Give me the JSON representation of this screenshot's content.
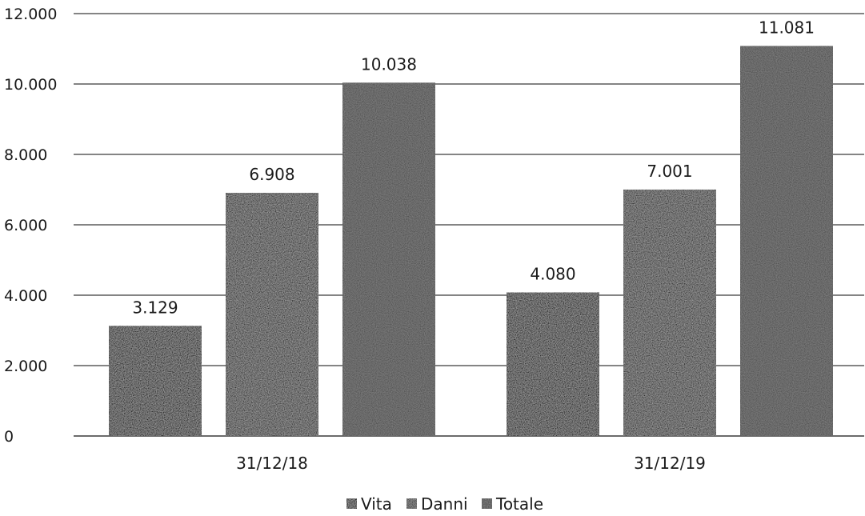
{
  "chart_data": {
    "type": "bar",
    "categories": [
      "31/12/18",
      "31/12/19"
    ],
    "series": [
      {
        "name": "Vita",
        "values": [
          3129,
          4080
        ],
        "labels": [
          "3.129",
          "4.080"
        ],
        "color": "#141414"
      },
      {
        "name": "Danni",
        "values": [
          6908,
          7001
        ],
        "labels": [
          "6.908",
          "7.001"
        ],
        "color": "#2c2c2c"
      },
      {
        "name": "Totale",
        "values": [
          10038,
          11081
        ],
        "labels": [
          "10.038",
          "11.081"
        ],
        "color": "#7a7a7a"
      }
    ],
    "ylim": [
      0,
      12000
    ],
    "yticks": [
      0,
      2000,
      4000,
      6000,
      8000,
      10000,
      12000
    ],
    "ytick_labels": [
      "0",
      "2.000",
      "4.000",
      "6.000",
      "8.000",
      "10.000",
      "12.000"
    ],
    "grid": true,
    "legend_position": "bottom-center",
    "gridline_color": "#3a3a3a"
  }
}
